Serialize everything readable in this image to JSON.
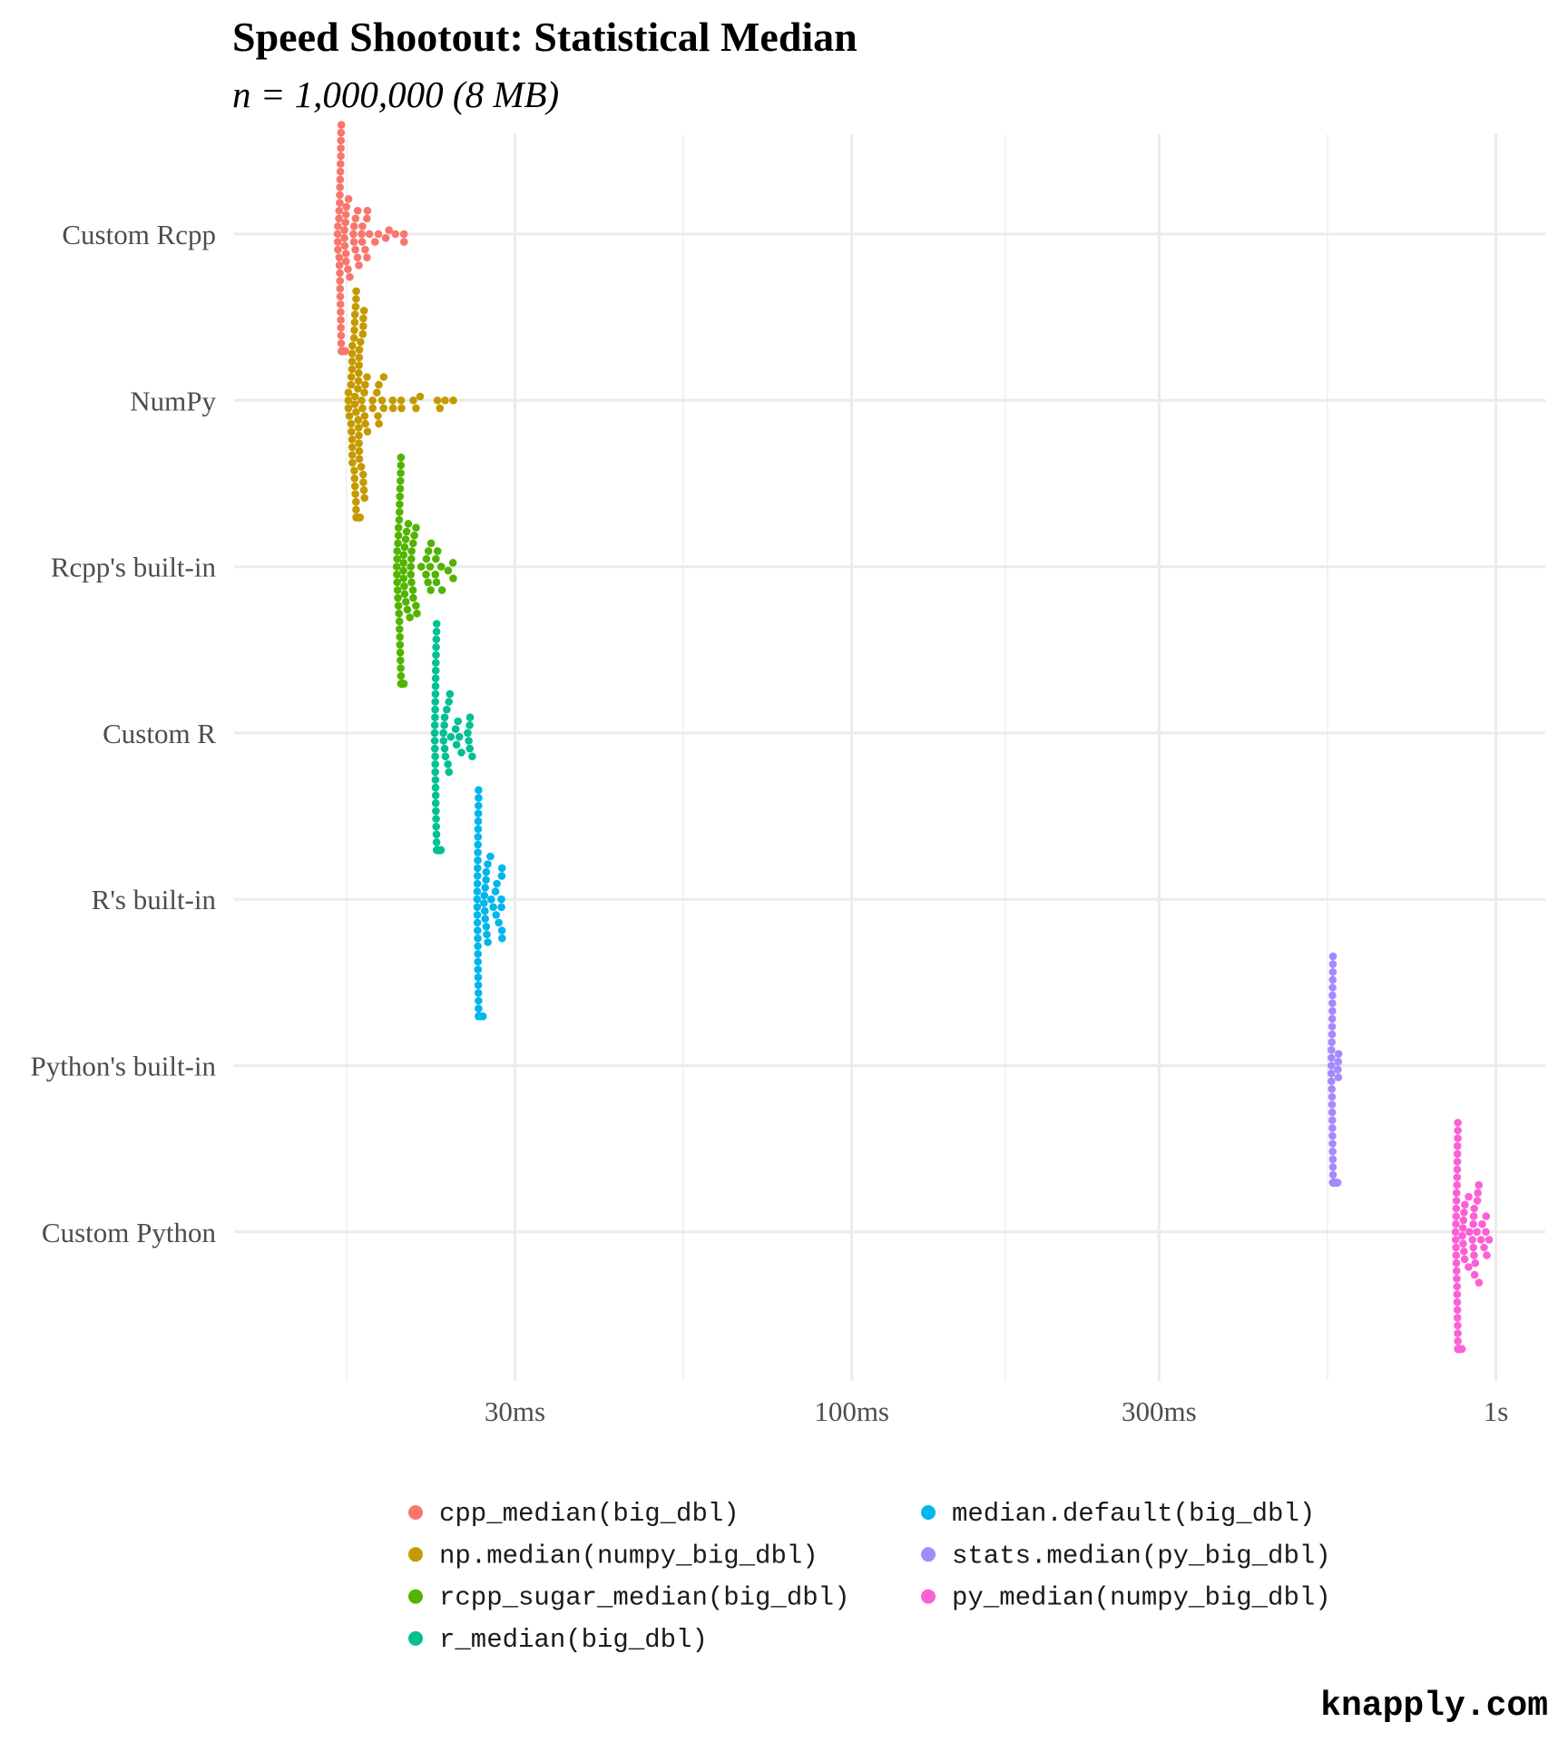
{
  "credit": "knapply.com",
  "chart_data": {
    "type": "scatter",
    "subtype": "beeswarm",
    "title": "Speed Shootout: Statistical Median",
    "subtitle": "n = 1,000,000 (8 MB)",
    "xlabel": "",
    "ylabel": "",
    "x_scale": "log10",
    "x_unit": "seconds",
    "xlim": [
      0.0135,
      1.1
    ],
    "x_ticks": [
      {
        "value": 0.03,
        "label": "30ms"
      },
      {
        "value": 0.1,
        "label": "100ms"
      },
      {
        "value": 0.3,
        "label": "300ms"
      },
      {
        "value": 1,
        "label": "1s"
      }
    ],
    "categories": [
      "Custom Rcpp",
      "NumPy",
      "Rcpp's built-in",
      "Custom R",
      "R's built-in",
      "Python's built-in",
      "Custom Python"
    ],
    "grid": true,
    "legend_position": "bottom",
    "series": [
      {
        "name": "cpp_median(big_dbl)",
        "category": "Custom Rcpp",
        "color": "#F8766D",
        "min": 0.0159,
        "median": 0.0162,
        "max": 0.0203,
        "n": 100
      },
      {
        "name": "np.median(numpy_big_dbl)",
        "category": "NumPy",
        "color": "#C49A00",
        "min": 0.0165,
        "median": 0.0172,
        "max": 0.0242,
        "n": 100
      },
      {
        "name": "rcpp_sugar_median(big_dbl)",
        "category": "Rcpp's built-in",
        "color": "#53B400",
        "min": 0.0196,
        "median": 0.0201,
        "max": 0.0243,
        "n": 100
      },
      {
        "name": "r_median(big_dbl)",
        "category": "Custom R",
        "color": "#00C094",
        "min": 0.0225,
        "median": 0.0228,
        "max": 0.0259,
        "n": 100
      },
      {
        "name": "median.default(big_dbl)",
        "category": "R's built-in",
        "color": "#00B6EB",
        "min": 0.0262,
        "median": 0.0264,
        "max": 0.0293,
        "n": 100
      },
      {
        "name": "stats.median(py_big_dbl)",
        "category": "Python's built-in",
        "color": "#A58AFF",
        "min": 0.555,
        "median": 0.56,
        "max": 0.57,
        "n": 100
      },
      {
        "name": "py_median(numpy_big_dbl)",
        "category": "Custom Python",
        "color": "#FB61D7",
        "min": 0.865,
        "median": 0.875,
        "max": 0.99,
        "n": 100
      }
    ]
  }
}
